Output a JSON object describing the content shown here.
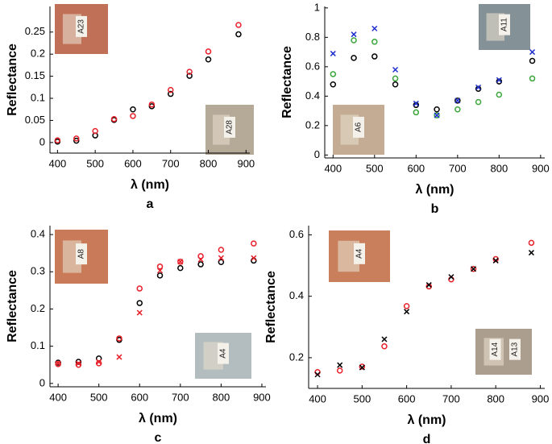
{
  "chart_data": [
    {
      "type": "scatter",
      "panel_label": "a",
      "xlabel": "λ (nm)",
      "ylabel": "Reflectance",
      "x": [
        400,
        450,
        500,
        550,
        600,
        650,
        700,
        750,
        800,
        880
      ],
      "xlim": [
        380,
        910
      ],
      "ylim": [
        -0.024,
        0.308
      ],
      "xticks": [
        400,
        500,
        600,
        700,
        800,
        900
      ],
      "yticks": [
        0,
        0.05,
        0.1,
        0.15,
        0.2,
        0.25
      ],
      "series": [
        {
          "color": "#000000",
          "marker": "o",
          "values": [
            0.002,
            0.004,
            0.016,
            0.051,
            0.075,
            0.082,
            0.11,
            0.151,
            0.188,
            0.245
          ]
        },
        {
          "color": "#e8202a",
          "marker": "o",
          "values": [
            0.005,
            0.009,
            0.026,
            0.053,
            0.06,
            0.086,
            0.119,
            0.16,
            0.206,
            0.266
          ]
        }
      ],
      "insets": [
        [
          "A23"
        ],
        [
          "A28"
        ]
      ]
    },
    {
      "type": "scatter",
      "panel_label": "b",
      "xlabel": "λ (nm)",
      "ylabel": "Reflectance",
      "x": [
        400,
        450,
        500,
        550,
        600,
        650,
        700,
        750,
        800,
        880
      ],
      "xlim": [
        380,
        910
      ],
      "ylim": [
        -0.02,
        1.01
      ],
      "xticks": [
        400,
        500,
        600,
        700,
        800,
        900
      ],
      "yticks": [
        0,
        0.2,
        0.4,
        0.6,
        0.8,
        1
      ],
      "series": [
        {
          "color": "#000000",
          "marker": "o",
          "values": [
            0.48,
            0.66,
            0.67,
            0.48,
            0.34,
            0.31,
            0.37,
            0.45,
            0.5,
            0.64
          ]
        },
        {
          "color": "#3aa63a",
          "marker": "o",
          "values": [
            0.55,
            0.78,
            0.77,
            0.52,
            0.29,
            0.27,
            0.31,
            0.36,
            0.41,
            0.52
          ]
        },
        {
          "color": "#1f2fcf",
          "marker": "x",
          "values": [
            0.69,
            0.82,
            0.86,
            0.58,
            0.35,
            0.27,
            0.37,
            0.46,
            0.51,
            0.7
          ]
        }
      ],
      "insets": [
        [
          "A11"
        ],
        [
          "A6"
        ]
      ]
    },
    {
      "type": "scatter",
      "panel_label": "c",
      "xlabel": "λ (nm)",
      "ylabel": "Reflectance",
      "x": [
        400,
        450,
        500,
        550,
        600,
        650,
        700,
        750,
        800,
        880
      ],
      "xlim": [
        380,
        910
      ],
      "ylim": [
        -0.009,
        0.424
      ],
      "xticks": [
        400,
        500,
        600,
        700,
        800,
        900
      ],
      "yticks": [
        0,
        0.1,
        0.2,
        0.3,
        0.4
      ],
      "series": [
        {
          "color": "#000000",
          "marker": "o",
          "values": [
            0.056,
            0.058,
            0.067,
            0.117,
            0.216,
            0.29,
            0.31,
            0.32,
            0.326,
            0.33
          ]
        },
        {
          "color": "#e8202a",
          "marker": "o",
          "values": [
            0.052,
            0.05,
            0.054,
            0.121,
            0.255,
            0.314,
            0.327,
            0.342,
            0.359,
            0.376
          ]
        },
        {
          "color": "#e8202a",
          "marker": "x",
          "values": [
            0.054,
            0.054,
            0.058,
            0.071,
            0.19,
            0.303,
            0.327,
            0.333,
            0.337,
            0.337
          ]
        }
      ],
      "insets": [
        [
          "A8"
        ],
        [
          "A4"
        ]
      ]
    },
    {
      "type": "scatter",
      "panel_label": "d",
      "xlabel": "λ (nm)",
      "ylabel": "Reflectance",
      "x": [
        400,
        450,
        500,
        550,
        600,
        650,
        700,
        750,
        800,
        880
      ],
      "xlim": [
        380,
        910
      ],
      "ylim": [
        0.1,
        0.63
      ],
      "xticks": [
        400,
        500,
        600,
        700,
        800,
        900
      ],
      "yticks": [
        0.2,
        0.4,
        0.6
      ],
      "series": [
        {
          "color": "#e8202a",
          "marker": "o",
          "values": [
            0.153,
            0.158,
            0.171,
            0.237,
            0.368,
            0.432,
            0.455,
            0.489,
            0.521,
            0.574
          ]
        },
        {
          "color": "#000000",
          "marker": "x",
          "values": [
            0.145,
            0.176,
            0.168,
            0.26,
            0.35,
            0.437,
            0.463,
            0.489,
            0.516,
            0.542
          ]
        }
      ],
      "insets": [
        [
          "A4"
        ],
        [
          "A14",
          "A13"
        ]
      ]
    }
  ]
}
